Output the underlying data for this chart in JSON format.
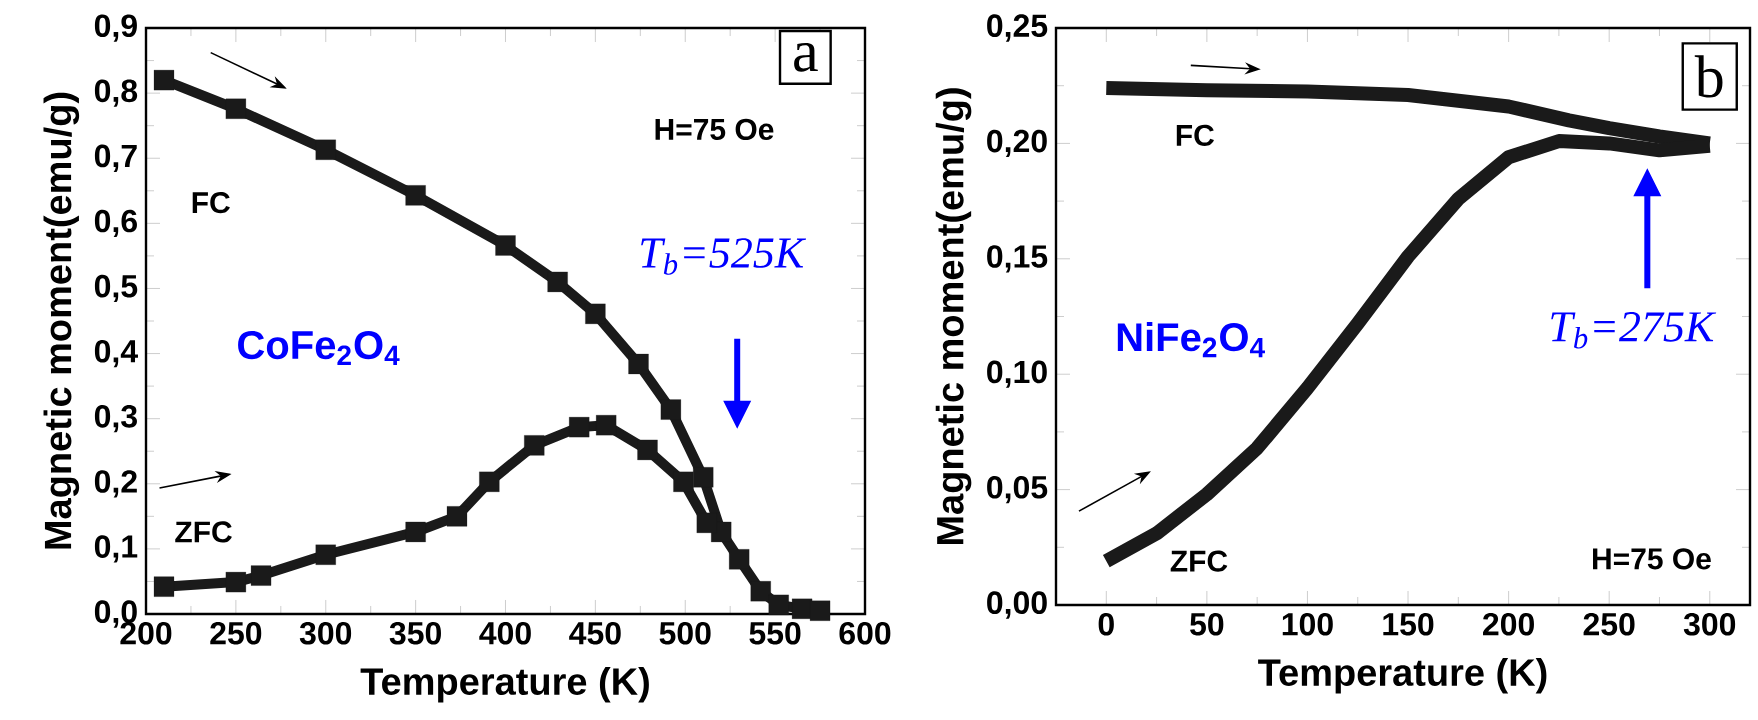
{
  "chart_data": [
    {
      "type": "line",
      "xlabel": "Temperature (K)",
      "ylabel": "Magnetic moment(emu/g)",
      "marker": "square",
      "xlim": [
        200,
        600
      ],
      "ylim": [
        0,
        0.9
      ],
      "xticks": [
        200,
        250,
        300,
        350,
        400,
        450,
        500,
        550,
        600
      ],
      "yticks": [
        {
          "value": 0,
          "label": "0,0"
        },
        {
          "value": 0.1,
          "label": "0,1"
        },
        {
          "value": 0.2,
          "label": "0,2"
        },
        {
          "value": 0.3,
          "label": "0,3"
        },
        {
          "value": 0.4,
          "label": "0,4"
        },
        {
          "value": 0.5,
          "label": "0,5"
        },
        {
          "value": 0.6,
          "label": "0,6"
        },
        {
          "value": 0.7,
          "label": "0,7"
        },
        {
          "value": 0.8,
          "label": "0,8"
        },
        {
          "value": 0.9,
          "label": "0,9"
        }
      ],
      "series": [
        {
          "color": "#1a1a1a",
          "x": [
            210,
            250,
            300,
            350,
            400,
            429,
            450,
            474,
            492,
            510,
            520,
            530,
            542,
            552,
            565,
            575
          ],
          "values": [
            0.82,
            0.776,
            0.713,
            0.643,
            0.566,
            0.51,
            0.461,
            0.384,
            0.314,
            0.21,
            0.126,
            0.084,
            0.035,
            0.014,
            0.008,
            0.005
          ]
        },
        {
          "color": "#1a1a1a",
          "x": [
            210,
            250,
            264,
            300,
            350,
            373,
            391,
            416,
            441,
            456,
            479,
            499,
            512
          ],
          "values": [
            0.042,
            0.049,
            0.059,
            0.091,
            0.126,
            0.15,
            0.203,
            0.259,
            0.287,
            0.29,
            0.252,
            0.203,
            0.14
          ]
        }
      ],
      "annotations": [
        "a",
        "H=75 Oe",
        "FC",
        "ZFC",
        "CoFe$_{2}$O$_{4}$",
        "T$_{b}$=525K"
      ]
    },
    {
      "type": "line",
      "xlabel": "Temperature (K)",
      "ylabel": "Magnetic moment(emu/g)",
      "marker": "none",
      "xlim": [
        -25,
        320
      ],
      "ylim": [
        0,
        0.25
      ],
      "xticks": [
        0,
        50,
        100,
        150,
        200,
        250,
        300
      ],
      "yticks": [
        {
          "value": 0,
          "label": "0,00"
        },
        {
          "value": 0.05,
          "label": "0,05"
        },
        {
          "value": 0.1,
          "label": "0,10"
        },
        {
          "value": 0.15,
          "label": "0,15"
        },
        {
          "value": 0.2,
          "label": "0,20"
        },
        {
          "value": 0.25,
          "label": "0,25"
        }
      ],
      "series": [
        {
          "color": "#1a1a1a",
          "x": [
            0,
            50,
            100,
            150,
            200,
            230,
            250,
            275,
            300
          ],
          "values": [
            0.224,
            0.223,
            0.2225,
            0.221,
            0.216,
            0.21,
            0.2066,
            0.203,
            0.2
          ]
        },
        {
          "color": "#1a1a1a",
          "x": [
            0,
            25,
            50,
            75,
            100,
            125,
            150,
            175,
            200,
            225,
            250,
            275,
            300
          ],
          "values": [
            0.019,
            0.031,
            0.048,
            0.068,
            0.094,
            0.122,
            0.151,
            0.176,
            0.194,
            0.201,
            0.2,
            0.197,
            0.199
          ]
        }
      ],
      "annotations": [
        "b",
        "H=75 Oe",
        "FC",
        "ZFC",
        "NiFe$_{2}$O$_{4}$",
        "T$_{b}$=275K"
      ]
    }
  ]
}
